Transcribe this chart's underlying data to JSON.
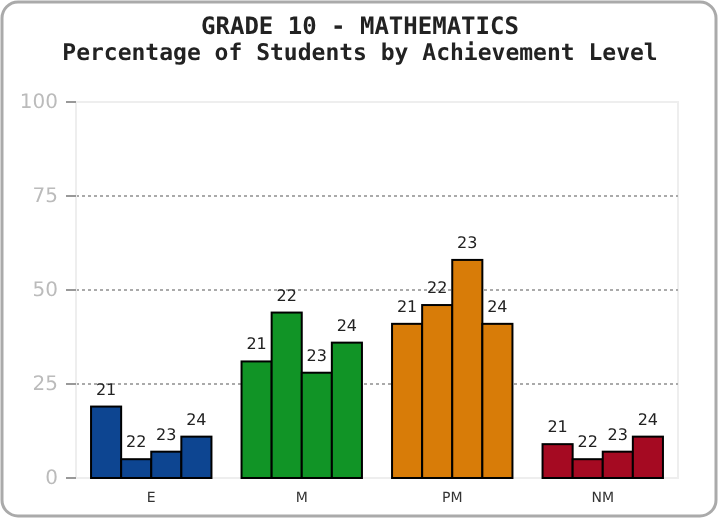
{
  "chart_data": {
    "type": "bar",
    "title": "GRADE 10 - MATHEMATICS",
    "subtitle": "Percentage of Students by Achievement Level",
    "categories": [
      "E",
      "M",
      "PM",
      "NM"
    ],
    "series": [
      {
        "name": "21",
        "colors": [
          "#0d4591",
          "#119426",
          "#d87c08",
          "#a50a22"
        ],
        "values": [
          19,
          31,
          41,
          9
        ]
      },
      {
        "name": "22",
        "colors": [
          "#0d4591",
          "#119426",
          "#d87c08",
          "#a50a22"
        ],
        "values": [
          5,
          44,
          46,
          5
        ]
      },
      {
        "name": "23",
        "colors": [
          "#0d4591",
          "#119426",
          "#d87c08",
          "#a50a22"
        ],
        "values": [
          7,
          28,
          58,
          7
        ]
      },
      {
        "name": "24",
        "colors": [
          "#0d4591",
          "#119426",
          "#d87c08",
          "#a50a22"
        ],
        "values": [
          11,
          36,
          41,
          11
        ]
      }
    ],
    "ylim": [
      0,
      100
    ],
    "yticks": [
      0,
      25,
      50,
      75,
      100
    ],
    "grid": "y"
  }
}
